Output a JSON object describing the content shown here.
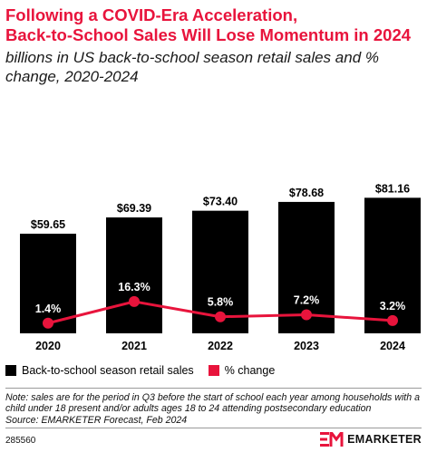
{
  "title": "Following a COVID-Era Acceleration, Back-to-School Sales Will Lose Momentum in 2024",
  "title_lines": [
    "Following a COVID-Era Acceleration,",
    "Back-to-School Sales Will Lose Momentum in 2024"
  ],
  "subtitle": "billions in US back-to-school season retail sales and % change, 2020-2024",
  "colors": {
    "bar": "#000000",
    "line": "#e8143c",
    "accent": "#e8143c"
  },
  "chart_data": {
    "type": "bar",
    "categories": [
      "2020",
      "2021",
      "2022",
      "2023",
      "2024"
    ],
    "series": [
      {
        "name": "Back-to-school season retail sales",
        "type": "bar",
        "values": [
          59.65,
          69.39,
          73.4,
          78.68,
          81.16
        ],
        "labels": [
          "$59.65",
          "$69.39",
          "$73.40",
          "$78.68",
          "$81.16"
        ],
        "color": "#000000"
      },
      {
        "name": "% change",
        "type": "line",
        "values": [
          1.4,
          16.3,
          5.8,
          7.2,
          3.2
        ],
        "labels": [
          "1.4%",
          "16.3%",
          "5.8%",
          "7.2%",
          "3.2%"
        ],
        "color": "#e8143c"
      }
    ],
    "legend": "bottom-left",
    "grid": false
  },
  "note": "Note: sales are for the period in Q3 before the start of school each year among households with a child under 18 present and/or adults ages 18 to 24 attending postsecondary education",
  "source": "Source: EMARKETER Forecast, Feb 2024",
  "chart_id": "285560",
  "brand": "EMARKETER"
}
